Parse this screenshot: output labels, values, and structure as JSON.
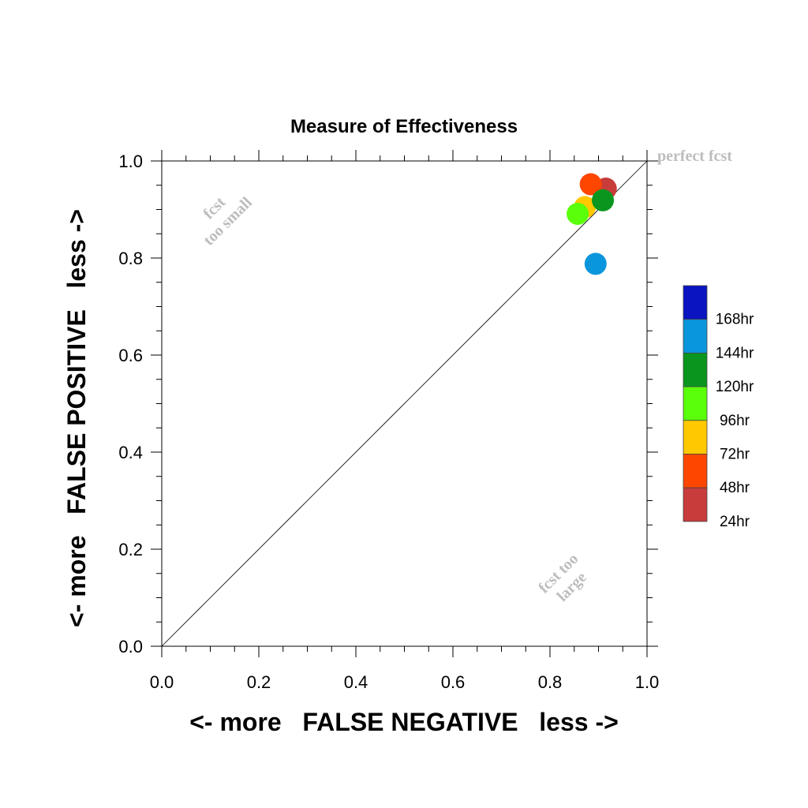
{
  "chart_data": {
    "type": "scatter",
    "title": "Measure of Effectiveness",
    "xlabel": "<- more   FALSE NEGATIVE   less ->",
    "ylabel": "<- more   FALSE POSITIVE   less ->",
    "xlim": [
      0.0,
      1.0
    ],
    "ylim": [
      0.0,
      1.0
    ],
    "x_ticks": [
      "0.0",
      "0.2",
      "0.4",
      "0.6",
      "0.8",
      "1.0"
    ],
    "y_ticks": [
      "0.0",
      "0.2",
      "0.4",
      "0.6",
      "0.8",
      "1.0"
    ],
    "grid": false,
    "diagonal_reference_line": true,
    "annotations": {
      "perfect": "perfect fcst",
      "too_small_1": "fcst",
      "too_small_2": "too small",
      "too_large_1": "fcst too",
      "too_large_2": "large"
    },
    "legend": [
      {
        "label": "168hr",
        "color": "#0a14c0"
      },
      {
        "label": "144hr",
        "color": "#0a96dc"
      },
      {
        "label": "120hr",
        "color": "#0a961e"
      },
      {
        "label": "96hr",
        "color": "#5aff0a"
      },
      {
        "label": "72hr",
        "color": "#ffc800"
      },
      {
        "label": "48hr",
        "color": "#ff4600"
      },
      {
        "label": "24hr",
        "color": "#c83c3c"
      }
    ],
    "legend_position": "right",
    "points": [
      {
        "series": "24hr",
        "x": 0.915,
        "y": 0.943,
        "color": "#c83c3c"
      },
      {
        "series": "48hr",
        "x": 0.884,
        "y": 0.952,
        "color": "#ff4600"
      },
      {
        "series": "72hr",
        "x": 0.872,
        "y": 0.905,
        "color": "#ffc800"
      },
      {
        "series": "96hr",
        "x": 0.857,
        "y": 0.891,
        "color": "#5aff0a"
      },
      {
        "series": "120hr",
        "x": 0.909,
        "y": 0.919,
        "color": "#0a961e"
      },
      {
        "series": "144hr",
        "x": 0.894,
        "y": 0.788,
        "color": "#0a96dc"
      }
    ]
  }
}
